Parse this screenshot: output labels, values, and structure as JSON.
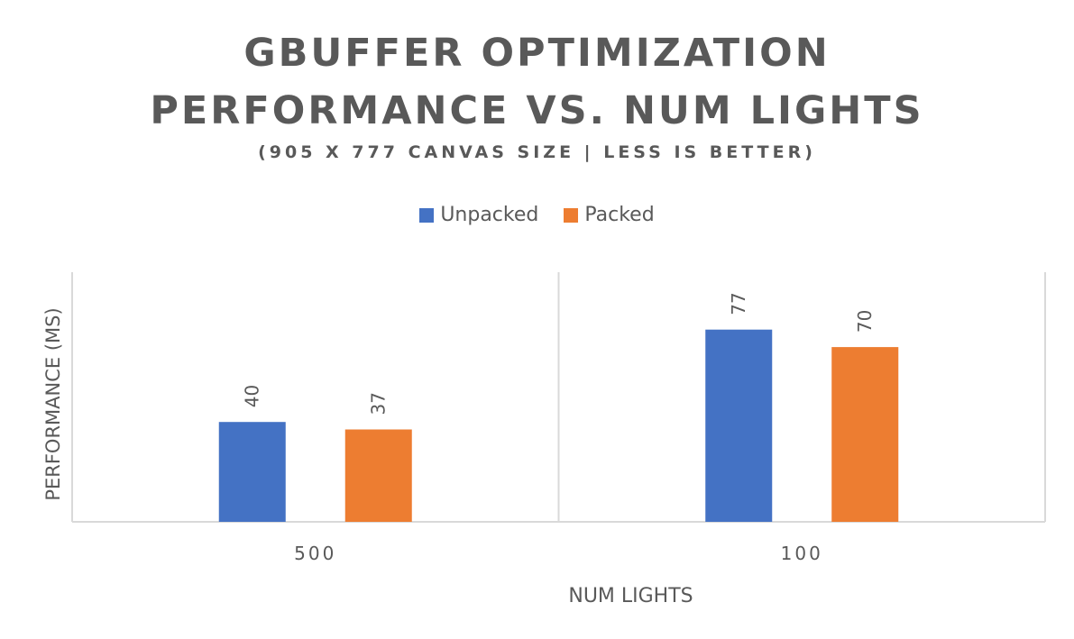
{
  "chart_data": {
    "type": "bar",
    "title_line1": "GBUFFER OPTIMIZATION",
    "title_line2": "PERFORMANCE VS. NUM LIGHTS",
    "subtitle": "(905 X 777 CANVAS SIZE | LESS IS BETTER)",
    "xlabel": "NUM LIGHTS",
    "ylabel": "PERFORMANCE (MS)",
    "categories": [
      "500",
      "100"
    ],
    "series": [
      {
        "name": "Unpacked",
        "values": [
          40,
          77
        ],
        "color": "#4472C4"
      },
      {
        "name": "Packed",
        "values": [
          37,
          70
        ],
        "color": "#ED7D31"
      }
    ],
    "ylim": [
      0,
      100
    ],
    "legend_position": "top",
    "grid": false
  }
}
